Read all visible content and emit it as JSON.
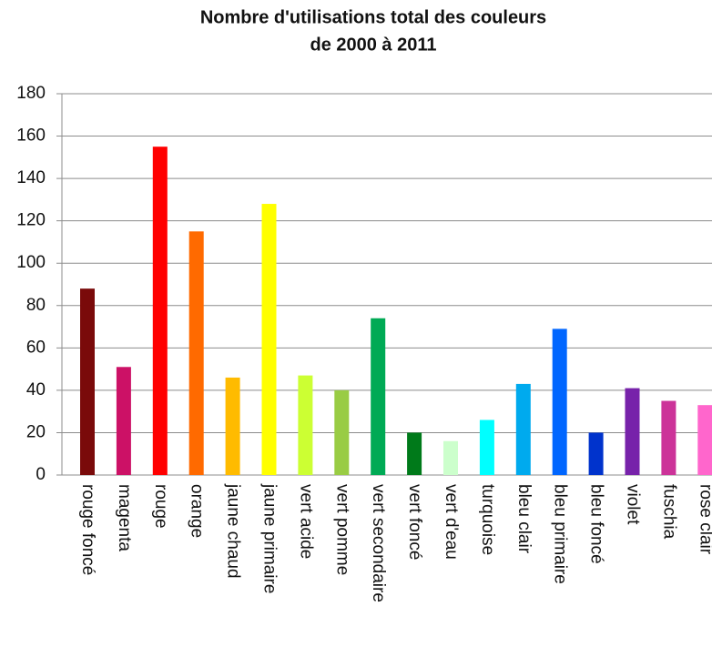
{
  "chart_data": {
    "type": "bar",
    "title": [
      "Nombre d'utilisations total des couleurs",
      "de 2000 à 2011"
    ],
    "categories": [
      "rouge foncé",
      "magenta",
      "rouge",
      "orange",
      "jaune chaud",
      "jaune primaire",
      "vert acide",
      "vert pomme",
      "vert secondaire",
      "vert foncé",
      "vert d'eau",
      "turquoise",
      "bleu clair",
      "bleu primaire",
      "bleu foncé",
      "violet",
      "fuschia",
      "rose clair"
    ],
    "values": [
      88,
      51,
      155,
      115,
      46,
      128,
      47,
      40,
      74,
      20,
      16,
      26,
      43,
      69,
      20,
      41,
      35,
      33
    ],
    "colors": [
      "#7a0a0a",
      "#cc1166",
      "#ff0000",
      "#ff6a00",
      "#ffbb00",
      "#ffff00",
      "#ccff33",
      "#99cc44",
      "#00aa55",
      "#007a1a",
      "#ccffcc",
      "#00ffff",
      "#00aaee",
      "#0066ff",
      "#0033cc",
      "#7722aa",
      "#cc3399",
      "#ff66cc"
    ],
    "ylim": [
      0,
      180
    ],
    "yticks": [
      0,
      20,
      40,
      60,
      80,
      100,
      120,
      140,
      160,
      180
    ],
    "grid": true
  }
}
